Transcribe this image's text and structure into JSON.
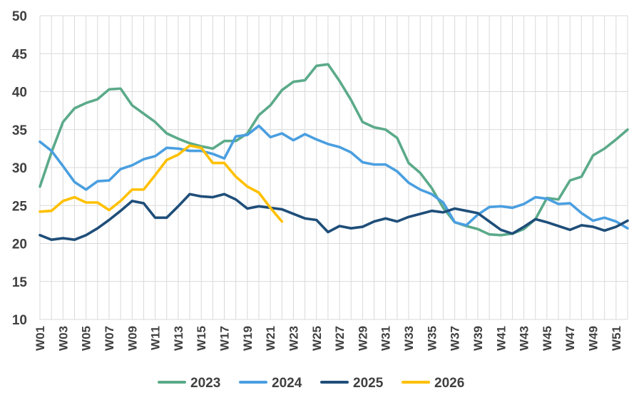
{
  "chart_data": {
    "type": "line",
    "title": "",
    "xlabel": "",
    "ylabel": "",
    "ylim": [
      10,
      50
    ],
    "y_ticks": [
      "10",
      "15",
      "20",
      "25",
      "30",
      "35",
      "40",
      "45",
      "50"
    ],
    "x_tick_labels": [
      "W01",
      "W03",
      "W05",
      "W07",
      "W09",
      "W11",
      "W13",
      "W15",
      "W17",
      "W19",
      "W21",
      "W23",
      "W25",
      "W27",
      "W29",
      "W31",
      "W33",
      "W35",
      "W37",
      "W39",
      "W41",
      "W43",
      "W45",
      "W47",
      "W49",
      "W51"
    ],
    "grid": "vertical and horizontal",
    "legend_position": "bottom",
    "categories": [
      "W01",
      "W02",
      "W03",
      "W04",
      "W05",
      "W06",
      "W07",
      "W08",
      "W09",
      "W10",
      "W11",
      "W12",
      "W13",
      "W14",
      "W15",
      "W16",
      "W17",
      "W18",
      "W19",
      "W20",
      "W21",
      "W22",
      "W23",
      "W24",
      "W25",
      "W26",
      "W27",
      "W28",
      "W29",
      "W30",
      "W31",
      "W32",
      "W33",
      "W34",
      "W35",
      "W36",
      "W37",
      "W38",
      "W39",
      "W40",
      "W41",
      "W42",
      "W43",
      "W44",
      "W45",
      "W46",
      "W47",
      "W48",
      "W49",
      "W50",
      "W51",
      "W52"
    ],
    "series": [
      {
        "name": "2023",
        "color": "#5BAA8A",
        "values": [
          27.5,
          32.0,
          36.0,
          37.8,
          38.5,
          39.0,
          40.3,
          40.4,
          38.2,
          37.1,
          36.0,
          34.5,
          33.8,
          33.2,
          32.8,
          32.5,
          33.5,
          33.5,
          34.5,
          36.9,
          38.2,
          40.2,
          41.3,
          41.5,
          43.4,
          43.6,
          41.4,
          38.9,
          36.0,
          35.3,
          35.0,
          33.9,
          30.6,
          29.3,
          27.3,
          24.7,
          22.8,
          22.3,
          21.9,
          21.2,
          21.1,
          21.3,
          21.9,
          23.2,
          26.0,
          25.8,
          28.3,
          28.8,
          31.6,
          32.5,
          33.7,
          35.0
        ]
      },
      {
        "name": "2024",
        "color": "#4A9FE0",
        "values": [
          33.4,
          32.2,
          30.2,
          28.1,
          27.1,
          28.2,
          28.3,
          29.8,
          30.3,
          31.1,
          31.5,
          32.6,
          32.5,
          32.2,
          32.2,
          31.8,
          31.2,
          34.1,
          34.3,
          35.5,
          34.0,
          34.5,
          33.6,
          34.4,
          33.7,
          33.1,
          32.7,
          32.0,
          30.7,
          30.4,
          30.4,
          29.5,
          28.0,
          27.1,
          26.5,
          25.4,
          22.8,
          22.4,
          23.8,
          24.8,
          24.9,
          24.7,
          25.2,
          26.1,
          25.9,
          25.2,
          25.3,
          24.0,
          23.0,
          23.4,
          22.9,
          22.0
        ]
      },
      {
        "name": "2025",
        "color": "#1F4E79",
        "values": [
          21.1,
          20.5,
          20.7,
          20.5,
          21.1,
          22.0,
          23.1,
          24.3,
          25.6,
          25.3,
          23.4,
          23.4,
          24.9,
          26.5,
          26.2,
          26.1,
          26.5,
          25.8,
          24.6,
          24.9,
          24.7,
          24.5,
          23.9,
          23.3,
          23.1,
          21.5,
          22.3,
          22.0,
          22.2,
          22.9,
          23.3,
          22.9,
          23.5,
          23.9,
          24.3,
          24.1,
          24.6,
          24.3,
          24.0,
          22.9,
          21.8,
          21.3,
          22.2,
          23.2,
          22.8,
          22.3,
          21.8,
          22.4,
          22.2,
          21.7,
          22.2,
          23.0
        ]
      },
      {
        "name": "2026",
        "color": "#FFC000",
        "values": [
          24.2,
          24.3,
          25.6,
          26.1,
          25.4,
          25.4,
          24.4,
          25.6,
          27.1,
          27.1,
          29.0,
          31.0,
          31.7,
          32.9,
          32.6,
          30.6,
          30.6,
          28.8,
          27.5,
          26.7,
          24.7,
          22.9,
          null,
          null,
          null,
          null,
          null,
          null,
          null,
          null,
          null,
          null,
          null,
          null,
          null,
          null,
          null,
          null,
          null,
          null,
          null,
          null,
          null,
          null,
          null,
          null,
          null,
          null,
          null,
          null,
          null,
          null
        ]
      }
    ]
  }
}
